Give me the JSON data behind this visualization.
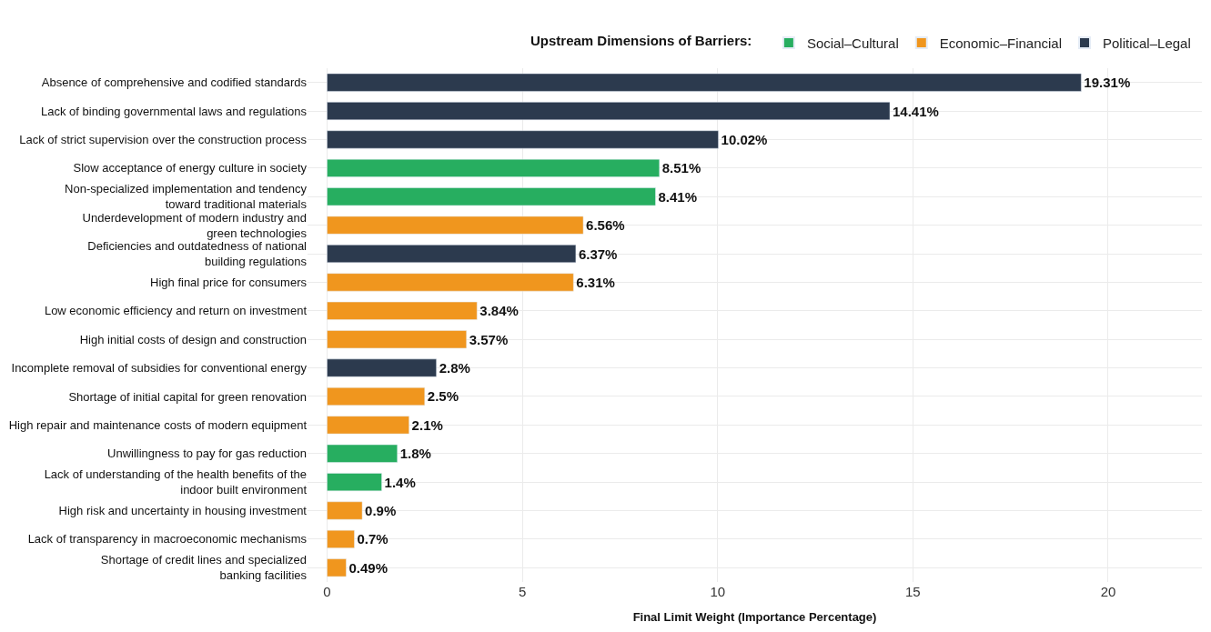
{
  "chart_data": {
    "type": "bar",
    "orientation": "horizontal",
    "xlabel": "Final Limit Weight (Importance Percentage)",
    "legend_title": "Upstream Dimensions of Barriers:",
    "legend": "top",
    "grid": true,
    "xlim": [
      -0.5,
      22.4
    ],
    "xticks": [
      0,
      5,
      10,
      15,
      20
    ],
    "categories": [
      "Absence of comprehensive and codified standards",
      "Lack of binding governmental laws and regulations",
      "Lack of strict supervision over the construction process",
      "Slow acceptance of energy culture in society",
      "Non-specialized implementation and tendency\ntoward traditional materials",
      "Underdevelopment of modern industry and\ngreen technologies",
      "Deficiencies and outdatedness of national\nbuilding regulations",
      "High final price for consumers",
      "Low economic efficiency and return on investment",
      "High initial costs of design and construction",
      "Incomplete removal of subsidies for conventional energy",
      "Shortage of initial capital for green renovation",
      "High repair and maintenance costs of modern equipment",
      "Unwillingness to pay for gas reduction",
      "Lack of understanding of the health benefits of the\nindoor built environment",
      "High risk and uncertainty in housing investment",
      "Lack of transparency in macroeconomic mechanisms",
      "Shortage of credit lines and specialized\nbanking facilities"
    ],
    "series": [
      {
        "name": "Social–Cultural",
        "color": "#27ae60",
        "values": [
          null,
          null,
          null,
          8.51,
          8.41,
          null,
          null,
          null,
          null,
          null,
          null,
          null,
          null,
          1.8,
          1.4,
          null,
          null,
          null
        ],
        "value_labels": [
          null,
          null,
          null,
          "8.51%",
          "8.41%",
          null,
          null,
          null,
          null,
          null,
          null,
          null,
          null,
          "1.8%",
          "1.4%",
          null,
          null,
          null
        ]
      },
      {
        "name": "Economic–Financial",
        "color": "#f0961e",
        "values": [
          null,
          null,
          null,
          null,
          null,
          6.56,
          null,
          6.31,
          3.84,
          3.57,
          null,
          2.5,
          2.1,
          null,
          null,
          0.9,
          0.7,
          0.49
        ],
        "value_labels": [
          null,
          null,
          null,
          null,
          null,
          "6.56%",
          null,
          "6.31%",
          "3.84%",
          "3.57%",
          null,
          "2.5%",
          "2.1%",
          null,
          null,
          "0.9%",
          "0.7%",
          "0.49%"
        ]
      },
      {
        "name": "Political–Legal",
        "color": "#2c3a4e",
        "values": [
          19.31,
          14.41,
          10.02,
          null,
          null,
          null,
          6.37,
          null,
          null,
          null,
          2.8,
          null,
          null,
          null,
          null,
          null,
          null,
          null
        ],
        "value_labels": [
          "19.31%",
          "14.41%",
          "10.02%",
          null,
          null,
          null,
          "6.37%",
          null,
          null,
          null,
          "2.8%",
          null,
          null,
          null,
          null,
          null,
          null,
          null
        ]
      }
    ]
  }
}
